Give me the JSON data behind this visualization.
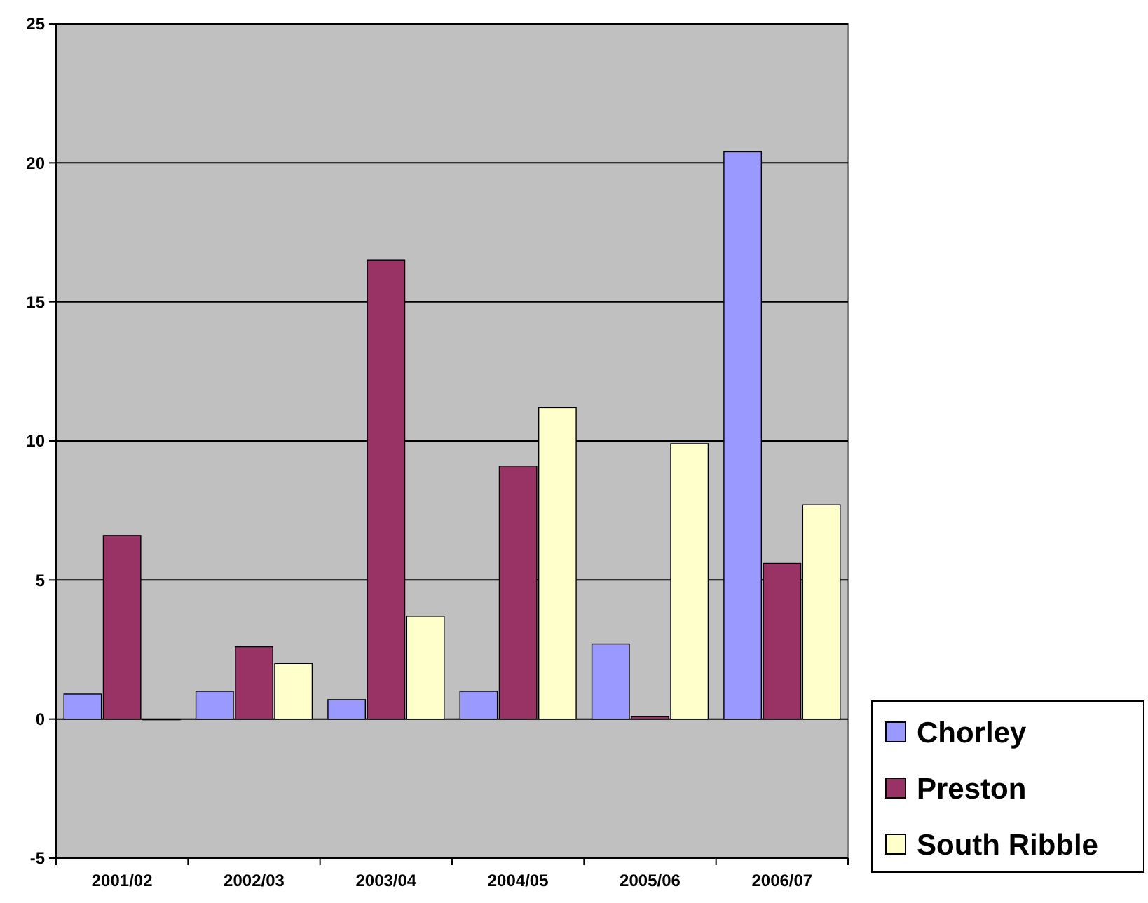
{
  "chart_data": {
    "type": "bar",
    "categories": [
      "2001/02",
      "2002/03",
      "2003/04",
      "2004/05",
      "2005/06",
      "2006/07"
    ],
    "series": [
      {
        "name": "Chorley",
        "color": "#9999ff",
        "values": [
          0.9,
          1.0,
          0.7,
          1.0,
          2.7,
          20.4
        ]
      },
      {
        "name": "Preston",
        "color": "#993366",
        "values": [
          6.6,
          2.6,
          16.5,
          9.1,
          0.1,
          5.6
        ]
      },
      {
        "name": "South Ribble",
        "color": "#ffffcc",
        "values": [
          0,
          2.0,
          3.7,
          11.2,
          9.9,
          7.7
        ]
      }
    ],
    "ylim": [
      -5,
      25
    ],
    "yticks": [
      -5,
      0,
      5,
      10,
      15,
      20,
      25
    ],
    "grid": "y",
    "legend": "bottom right"
  }
}
